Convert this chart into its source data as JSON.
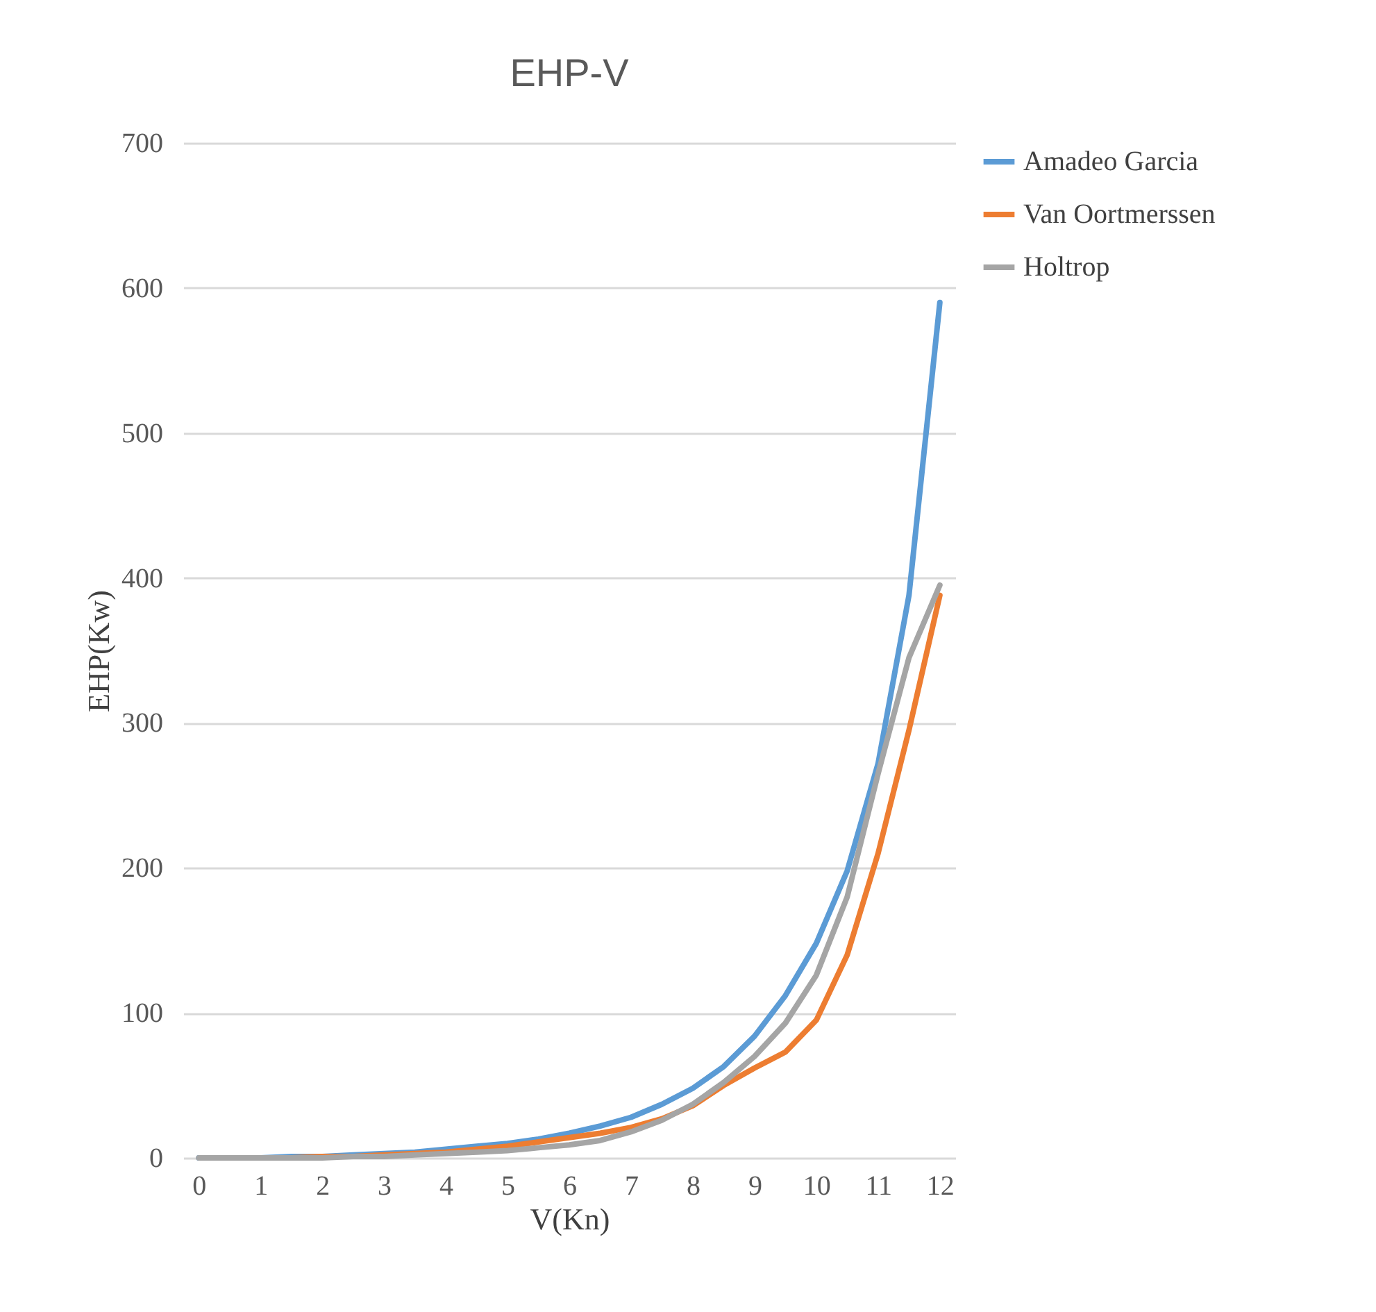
{
  "chart_data": {
    "type": "line",
    "title": "EHP-V",
    "xlabel": "V(Kn)",
    "ylabel": "EHP(Kw)",
    "x": [
      0,
      0.5,
      1,
      1.5,
      2,
      2.5,
      3,
      3.5,
      4,
      4.5,
      5,
      5.5,
      6,
      6.5,
      7,
      7.5,
      8,
      8.5,
      9,
      9.5,
      10,
      10.5,
      11,
      11.5,
      12
    ],
    "series": [
      {
        "name": "Amadeo Garcia",
        "color": "#5b9bd5",
        "values": [
          0,
          0,
          0,
          1,
          1,
          2,
          3,
          4,
          6,
          8,
          10,
          13,
          17,
          22,
          28,
          37,
          48,
          63,
          84,
          112,
          148,
          198,
          272,
          388,
          590
        ]
      },
      {
        "name": "Van Oortmerssen",
        "color": "#ed7d31",
        "values": [
          null,
          null,
          0,
          0,
          1,
          1,
          2,
          3,
          4,
          6,
          8,
          11,
          14,
          17,
          21,
          27,
          36,
          50,
          62,
          73,
          95,
          140,
          210,
          295,
          388
        ]
      },
      {
        "name": "Holtrop",
        "color": "#a5a5a5",
        "values": [
          0,
          0,
          0,
          0,
          0,
          1,
          1,
          2,
          3,
          4,
          5,
          7,
          9,
          12,
          18,
          26,
          37,
          52,
          70,
          93,
          126,
          180,
          265,
          345,
          395
        ]
      }
    ],
    "xlim": [
      -0.25,
      12.25
    ],
    "xticks": [
      0,
      1,
      2,
      3,
      4,
      5,
      6,
      7,
      8,
      9,
      10,
      11,
      12
    ],
    "ylim": [
      0,
      700
    ],
    "yticks": [
      0,
      100,
      200,
      300,
      400,
      500,
      600,
      700
    ],
    "grid": "y",
    "legend": "right",
    "line_style": "solid",
    "marker": "none"
  }
}
